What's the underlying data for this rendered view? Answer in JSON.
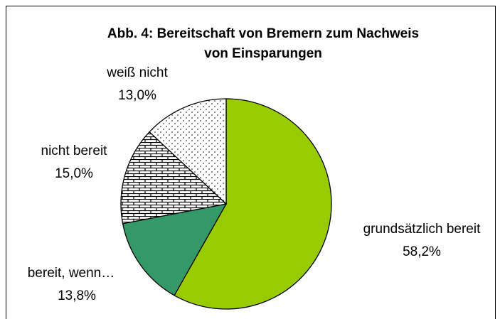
{
  "chart_data": {
    "type": "pie",
    "title": [
      "Abb. 4: Bereitschaft von Bremern zum Nachweis",
      "von Einsparungen"
    ],
    "categories": [
      "grundsätzlich bereit",
      "bereit, wenn…",
      "nicht bereit",
      "weiß nicht"
    ],
    "values": [
      58.2,
      13.8,
      15.0,
      13.0
    ],
    "value_labels": [
      "58,2%",
      "13,8%",
      "15,0%",
      "13,0%"
    ],
    "colors": [
      "#99cc00",
      "#339966",
      "#ffffff",
      "#ffffff"
    ],
    "patterns": [
      null,
      null,
      "brick",
      "dots"
    ]
  }
}
